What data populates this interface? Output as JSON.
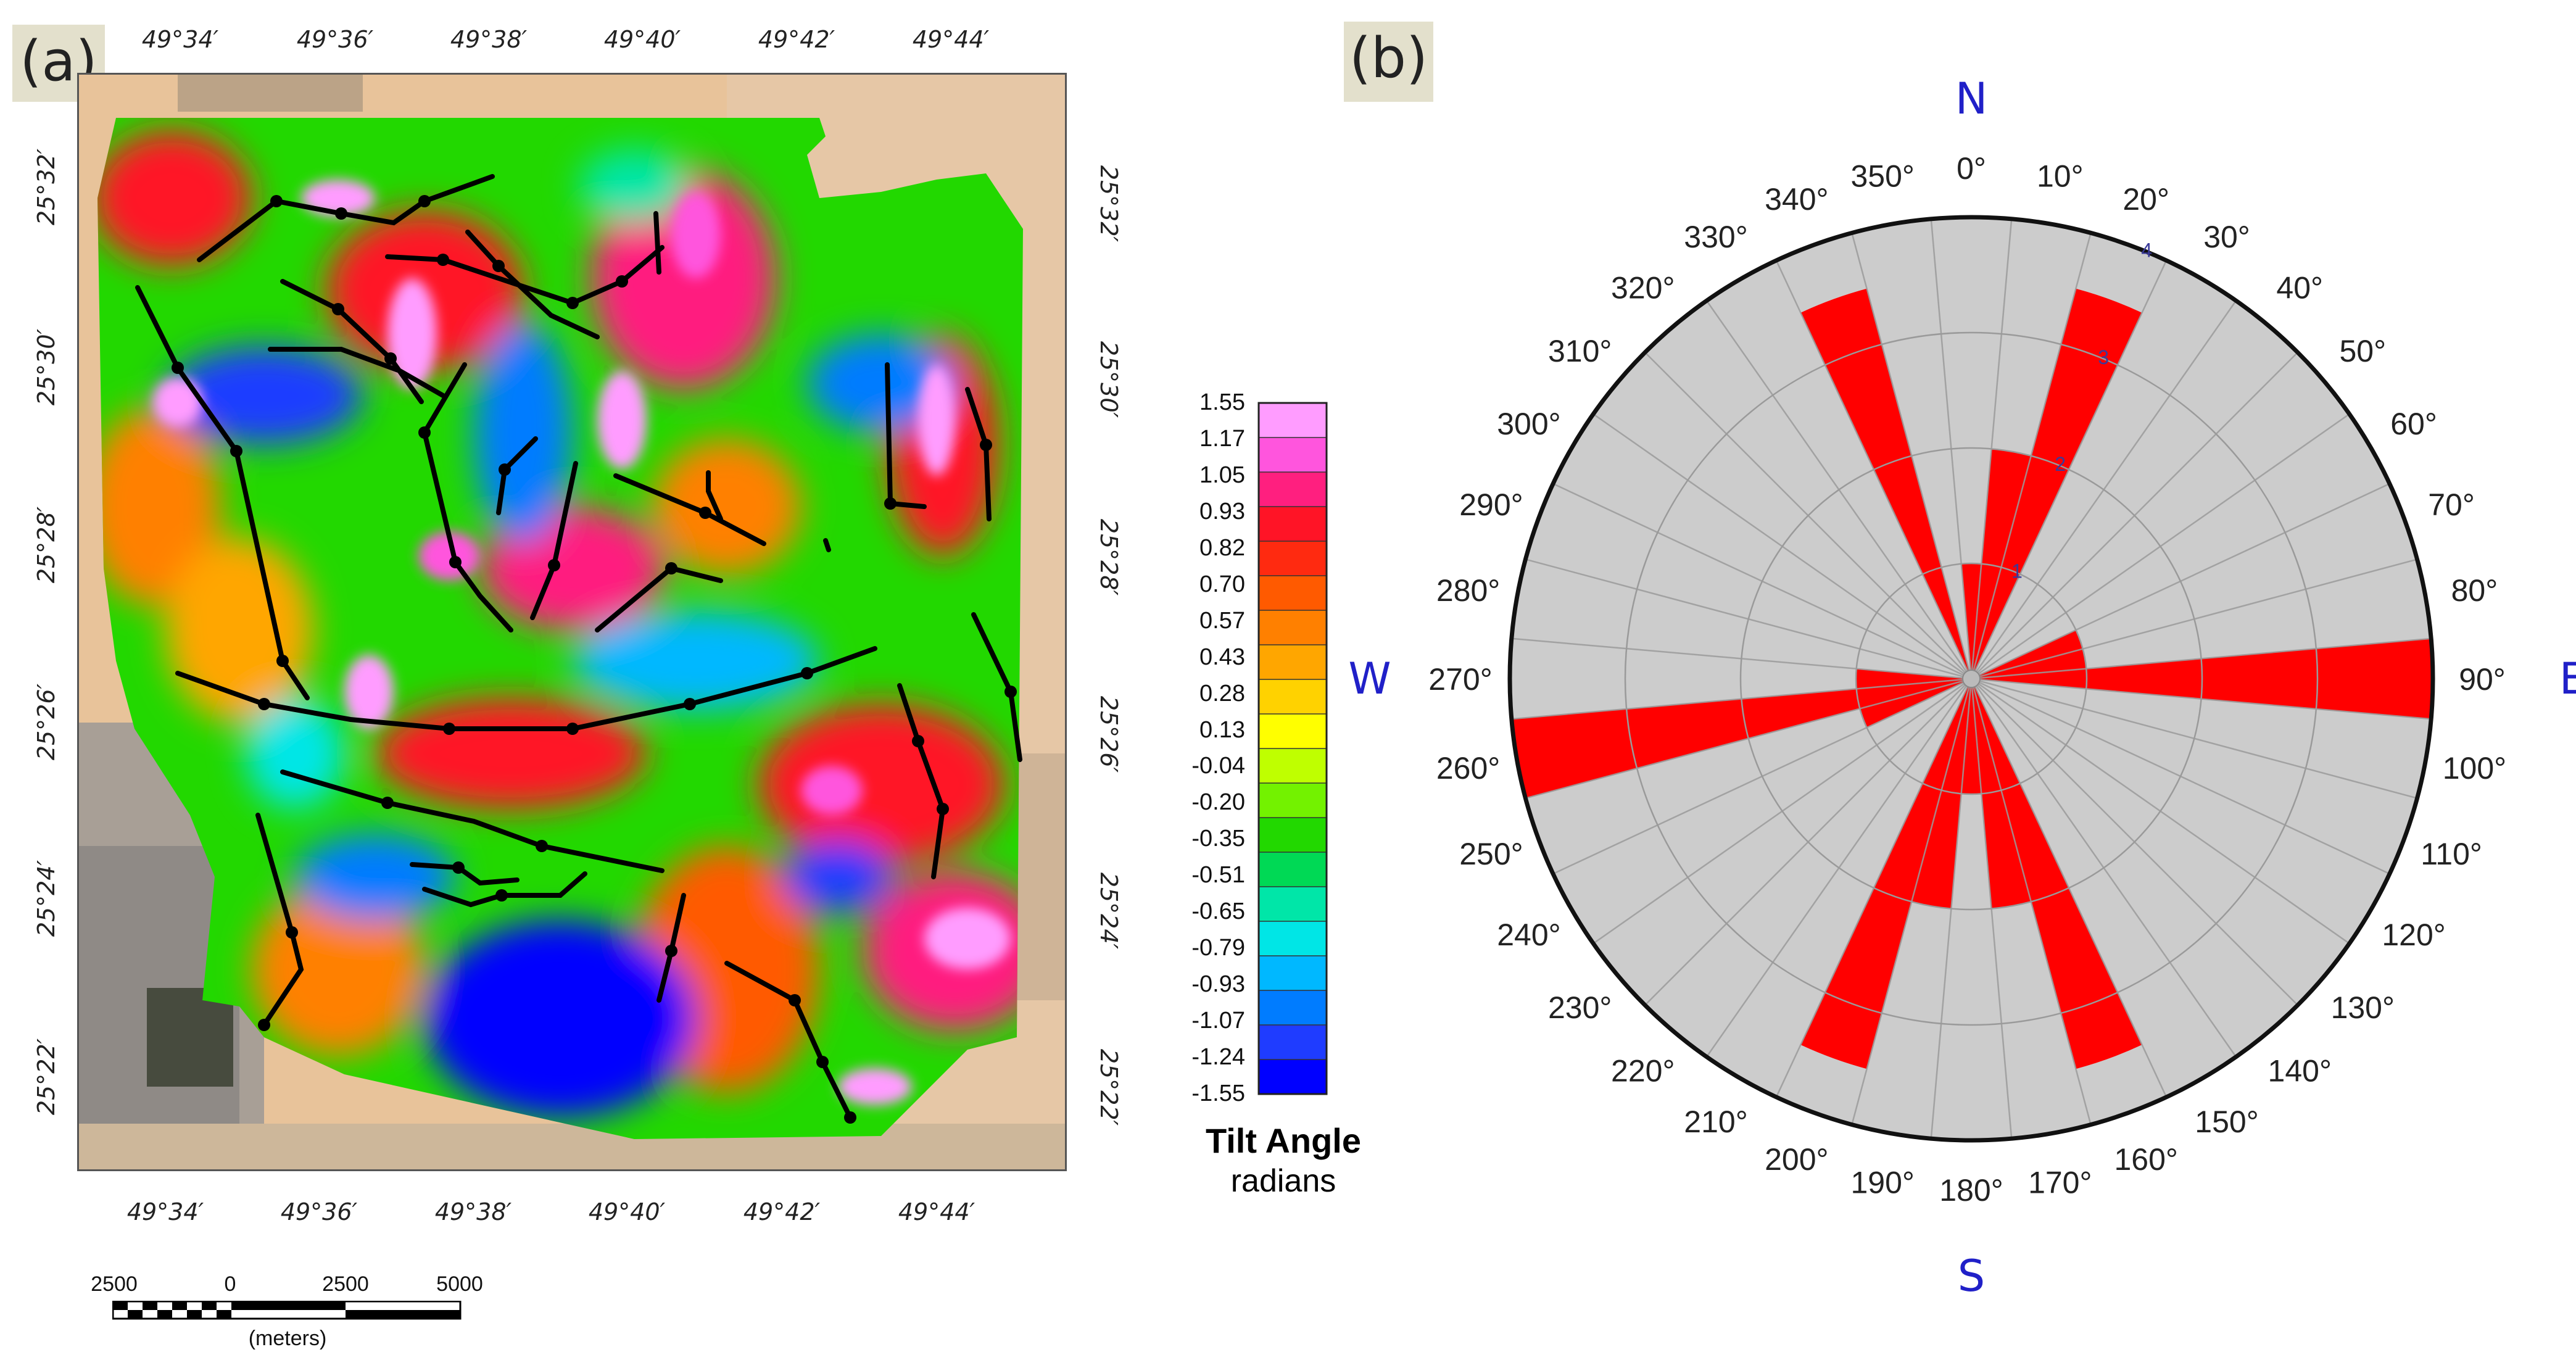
{
  "panels": {
    "a": "(a)",
    "b": "(b)"
  },
  "map": {
    "lon_ticks": [
      "49°34′",
      "49°36′",
      "49°38′",
      "49°40′",
      "49°42′",
      "49°44′"
    ],
    "lat_ticks": [
      "25°32′",
      "25°30′",
      "25°28′",
      "25°26′",
      "25°24′",
      "25°22′"
    ]
  },
  "colorbar": {
    "labels": [
      "1.55",
      "1.17",
      "1.05",
      "0.93",
      "0.82",
      "0.70",
      "0.57",
      "0.43",
      "0.28",
      "0.13",
      "-0.04",
      "-0.20",
      "-0.35",
      "-0.51",
      "-0.65",
      "-0.79",
      "-0.93",
      "-1.07",
      "-1.24",
      "-1.55"
    ],
    "title": "Tilt Angle",
    "unit": "radians",
    "colors": [
      "#ff9cff",
      "#ff55dd",
      "#ff1f7f",
      "#ff1426",
      "#ff2a10",
      "#ff5a00",
      "#ff8000",
      "#ffa600",
      "#ffd200",
      "#ffff00",
      "#bfff00",
      "#73f200",
      "#22d800",
      "#00d955",
      "#00e6a8",
      "#00e6e6",
      "#00b8ff",
      "#007cff",
      "#1f3cff",
      "#0000ff"
    ]
  },
  "scale_bar": {
    "labels": [
      "2500",
      "0",
      "2500",
      "5000"
    ],
    "unit": "(meters)"
  },
  "rose": {
    "cardinals": {
      "N": "N",
      "E": "E",
      "S": "S",
      "W": "W"
    },
    "angle_labels": [
      "0°",
      "10°",
      "20°",
      "30°",
      "40°",
      "50°",
      "60°",
      "70°",
      "80°",
      "90°",
      "100°",
      "110°",
      "120°",
      "130°",
      "140°",
      "150°",
      "160°",
      "170°",
      "180°",
      "190°",
      "200°",
      "210°",
      "220°",
      "230°",
      "240°",
      "250°",
      "260°",
      "270°",
      "280°",
      "290°",
      "300°",
      "310°",
      "320°",
      "330°",
      "340°",
      "350°"
    ],
    "radial_labels": [
      "1",
      "2",
      "3",
      "4"
    ],
    "fill_color": "#ff0000",
    "background_color": "#cccccc"
  },
  "chart_data": {
    "type": "rose",
    "bin_width_deg": 10,
    "bins_deg": [
      0,
      10,
      20,
      30,
      40,
      50,
      60,
      70,
      80,
      90,
      100,
      110,
      120,
      130,
      140,
      150,
      160,
      170,
      180,
      190,
      200,
      210,
      220,
      230,
      240,
      250,
      260,
      270,
      280,
      290,
      300,
      310,
      320,
      330,
      340,
      350
    ],
    "values": [
      1,
      2,
      3.5,
      0,
      0,
      0,
      0,
      1,
      1,
      4,
      0,
      0,
      0,
      0,
      0,
      0,
      3.5,
      2,
      1,
      2,
      3.5,
      0,
      0,
      0,
      0,
      1,
      4,
      1,
      0,
      0,
      0,
      0,
      0,
      0,
      3.5,
      0
    ],
    "r_max": 4,
    "radial_ticks": [
      1,
      2,
      3,
      4
    ]
  }
}
